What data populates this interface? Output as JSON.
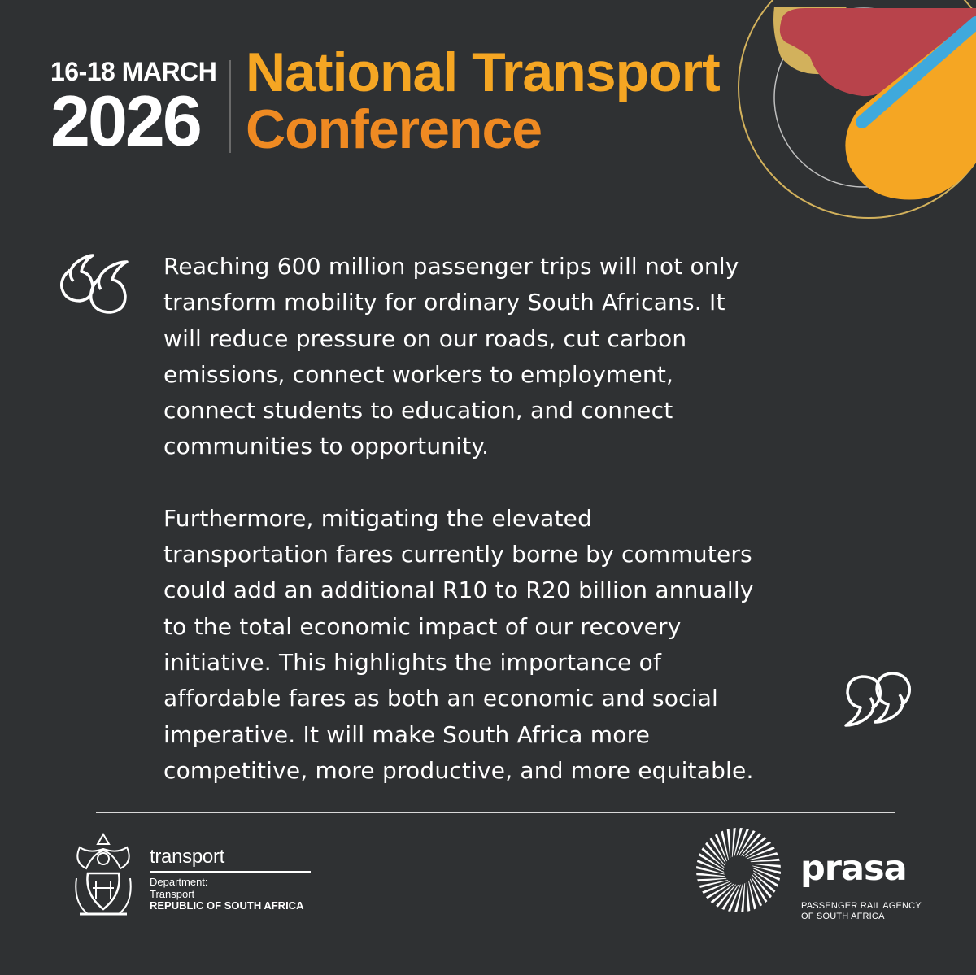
{
  "header": {
    "date_range": "16-18 MARCH",
    "year": "2026",
    "title_line1": "National Transport",
    "title_line2": "Conference"
  },
  "quote": {
    "paragraph1": "Reaching 600 million passenger trips will not only\ntransform mobility for ordinary South Africans. It\nwill reduce pressure on our roads, cut carbon\nemissions, connect workers to employment,\nconnect students to education, and connect\ncommunities to opportunity.",
    "paragraph2": " Furthermore, mitigating the elevated\ntransportation fares currently borne by commuters\ncould add an additional R10 to R20 billion annually\nto the total economic impact of our recovery\ninitiative. This highlights the importance of\naffordable fares as both an economic and social\nimperative. It will make South Africa more\ncompetitive, more productive, and more equitable."
  },
  "footer": {
    "dot_name": "transport",
    "dot_department": "Department:",
    "dot_department_name": "Transport",
    "dot_country": "REPUBLIC OF SOUTH AFRICA",
    "prasa_name": "prasa",
    "prasa_sub_line1": "PASSENGER RAIL AGENCY",
    "prasa_sub_line2": "OF SOUTH AFRICA"
  },
  "colors": {
    "background": "#2f3133",
    "accent_yellow": "#f5a623",
    "accent_orange": "#ef8a22",
    "accent_red": "#b8434b",
    "accent_tan": "#d2b15c",
    "accent_blue": "#3fa9dc"
  },
  "icons": {
    "open_quote": "quote-open-icon",
    "close_quote": "quote-close-icon",
    "coat_of_arms": "coat-of-arms-icon",
    "prasa_mark": "prasa-sunburst-icon"
  }
}
